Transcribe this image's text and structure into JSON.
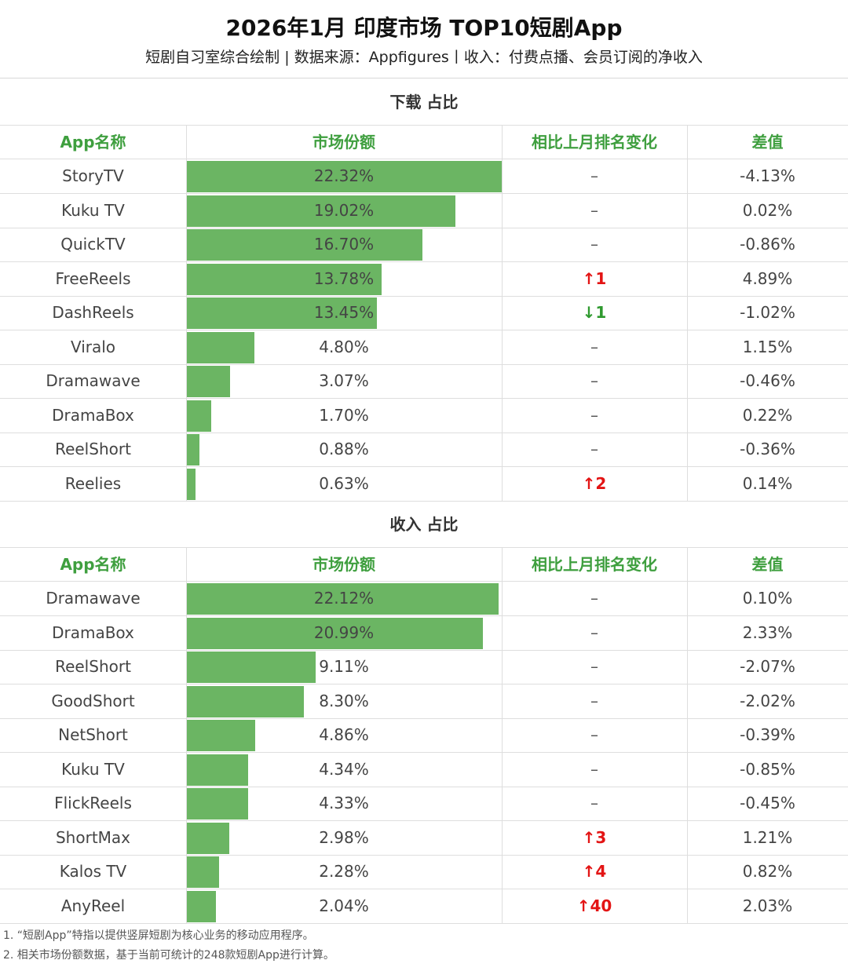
{
  "title": "2026年1月 印度市场 TOP10短剧App",
  "subtitle": "短剧自习室综合绘制 | 数据来源：Appfigures丨收入：付费点播、会员订阅的净收入",
  "columns": {
    "app": "App名称",
    "share": "市场份额",
    "rank_change": "相比上月排名变化",
    "diff": "差值"
  },
  "chart_data": [
    {
      "type": "bar",
      "title": "下载 占比",
      "orientation": "horizontal",
      "ylim": [
        0,
        22.32
      ],
      "categories": [
        "StoryTV",
        "Kuku TV",
        "QuickTV",
        "FreeReels",
        "DashReels",
        "Viralo",
        "Dramawave",
        "DramaBox",
        "ReelShort",
        "Reelies"
      ],
      "values": [
        22.32,
        19.02,
        16.7,
        13.78,
        13.45,
        4.8,
        3.07,
        1.7,
        0.88,
        0.63
      ],
      "labels": [
        "22.32%",
        "19.02%",
        "16.70%",
        "13.78%",
        "13.45%",
        "4.80%",
        "3.07%",
        "1.70%",
        "0.88%",
        "0.63%"
      ],
      "rank_change": [
        "–",
        "–",
        "–",
        "↑1",
        "↓1",
        "–",
        "–",
        "–",
        "–",
        "↑2"
      ],
      "rank_direction": [
        "none",
        "none",
        "none",
        "up",
        "down",
        "none",
        "none",
        "none",
        "none",
        "up"
      ],
      "diff": [
        "-4.13%",
        "0.02%",
        "-0.86%",
        "4.89%",
        "-1.02%",
        "1.15%",
        "-0.46%",
        "0.22%",
        "-0.36%",
        "0.14%"
      ]
    },
    {
      "type": "bar",
      "title": "收入 占比",
      "orientation": "horizontal",
      "ylim": [
        0,
        22.32
      ],
      "categories": [
        "Dramawave",
        "DramaBox",
        "ReelShort",
        "GoodShort",
        "NetShort",
        "Kuku TV",
        "FlickReels",
        "ShortMax",
        "Kalos TV",
        "AnyReel"
      ],
      "values": [
        22.12,
        20.99,
        9.11,
        8.3,
        4.86,
        4.34,
        4.33,
        2.98,
        2.28,
        2.04
      ],
      "labels": [
        "22.12%",
        "20.99%",
        "9.11%",
        "8.30%",
        "4.86%",
        "4.34%",
        "4.33%",
        "2.98%",
        "2.28%",
        "2.04%"
      ],
      "rank_change": [
        "–",
        "–",
        "–",
        "–",
        "–",
        "–",
        "–",
        "↑3",
        "↑4",
        "↑40"
      ],
      "rank_direction": [
        "none",
        "none",
        "none",
        "none",
        "none",
        "none",
        "none",
        "up",
        "up",
        "up"
      ],
      "diff": [
        "0.10%",
        "2.33%",
        "-2.07%",
        "-2.02%",
        "-0.39%",
        "-0.85%",
        "-0.45%",
        "1.21%",
        "0.82%",
        "2.03%"
      ]
    }
  ],
  "footnotes": [
    "1. “短剧App”特指以提供竖屏短剧为核心业务的移动应用程序。",
    "2. 相关市场份额数据，基于当前可统计的248款短剧App进行计算。"
  ]
}
